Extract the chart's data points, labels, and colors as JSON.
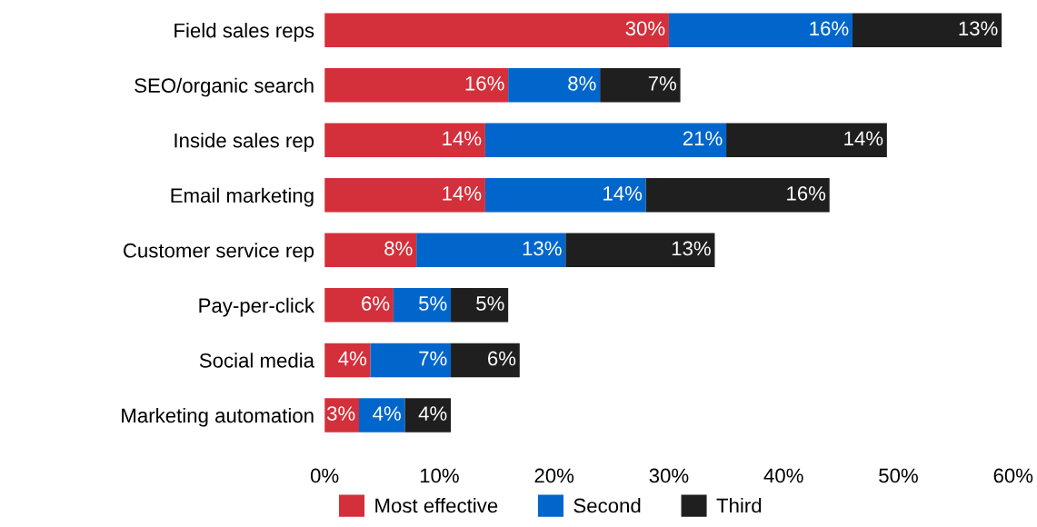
{
  "chart_data": {
    "type": "bar",
    "orientation": "horizontal",
    "stacked": true,
    "categories": [
      "Field sales reps",
      "SEO/organic search",
      "Inside sales rep",
      "Email marketing",
      "Customer service rep",
      "Pay-per-click",
      "Social media",
      "Marketing automation"
    ],
    "series": [
      {
        "name": "Most effective",
        "color": "#d3303b",
        "values": [
          30,
          16,
          14,
          14,
          8,
          6,
          4,
          3
        ],
        "value_labels": [
          "30%",
          "16%",
          "14%",
          "14%",
          "8%",
          "6%",
          "4%",
          "3%"
        ]
      },
      {
        "name": "Second",
        "color": "#0066cc",
        "values": [
          16,
          8,
          21,
          14,
          13,
          5,
          7,
          4
        ],
        "value_labels": [
          "16%",
          "8%",
          "21%",
          "14%",
          "13%",
          "5%",
          "7%",
          "4%"
        ]
      },
      {
        "name": "Third",
        "color": "#1f1f1f",
        "values": [
          13,
          7,
          14,
          16,
          13,
          5,
          6,
          4
        ],
        "value_labels": [
          "13%",
          "7%",
          "14%",
          "16%",
          "13%",
          "5%",
          "6%",
          "4%"
        ]
      }
    ],
    "xlim": [
      0,
      60
    ],
    "xticks": [
      {
        "value": 0,
        "label": "0%"
      },
      {
        "value": 10,
        "label": "10%"
      },
      {
        "value": 20,
        "label": "20%"
      },
      {
        "value": 30,
        "label": "30%"
      },
      {
        "value": 40,
        "label": "40%"
      },
      {
        "value": 50,
        "label": "50%"
      },
      {
        "value": 60,
        "label": "60%"
      }
    ],
    "grid": false,
    "legend": "bottom"
  }
}
